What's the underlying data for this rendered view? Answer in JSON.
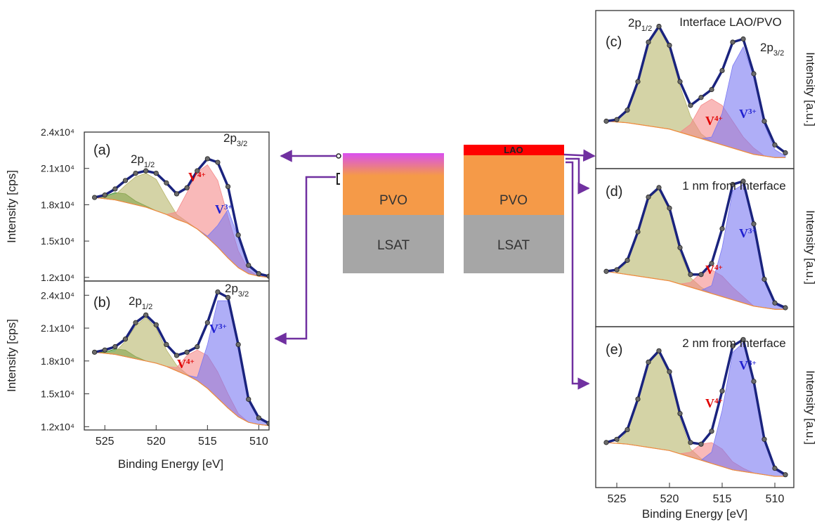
{
  "chart_data": [
    {
      "type": "line",
      "ylabel": "Intensity [cps]",
      "x": [
        526,
        525,
        524,
        523,
        522,
        521,
        520,
        519,
        518,
        517,
        516,
        515,
        514,
        513,
        512,
        511,
        510,
        509
      ],
      "xlim": [
        527,
        509
      ],
      "ylim": [
        11700,
        24000
      ],
      "yticks": [
        {
          "value": 12000,
          "label": "1.2x10⁴"
        },
        {
          "value": 15000,
          "label": "1.5x10⁴"
        },
        {
          "value": 18000,
          "label": "1.8x10⁴"
        },
        {
          "value": 21000,
          "label": "2.1x10⁴"
        },
        {
          "value": 24000,
          "label": "2.4x10⁴"
        }
      ],
      "series": [
        {
          "color": "#f08c3c",
          "values": [
            18600,
            18500,
            18400,
            18200,
            18000,
            17800,
            17500,
            17200,
            16800,
            16500,
            16000,
            15300,
            14500,
            13600,
            12800,
            12300,
            12100,
            12000
          ]
        },
        {
          "color": "#3f8a22",
          "values": [
            18600,
            18700,
            19000,
            18900,
            18300,
            17900,
            17500,
            17200,
            16800,
            16500,
            16000,
            15300,
            14500,
            13600,
            12800,
            12300,
            12100,
            12000
          ]
        },
        {
          "color": "#b8b66a",
          "values": [
            18600,
            18600,
            18800,
            19600,
            20300,
            20600,
            20100,
            18600,
            17200,
            16600,
            16000,
            15300,
            14500,
            13600,
            12800,
            12300,
            12100,
            12000
          ]
        },
        {
          "color": "#f58a8a",
          "values": [
            18600,
            18500,
            18400,
            18200,
            18000,
            17800,
            17500,
            17200,
            17400,
            19000,
            20700,
            21300,
            20000,
            17000,
            14200,
            12600,
            12100,
            12000
          ]
        },
        {
          "color": "#7a78f2",
          "values": [
            18600,
            18500,
            18400,
            18200,
            18000,
            17800,
            17500,
            17200,
            16800,
            16500,
            16000,
            15400,
            16300,
            17600,
            15300,
            13000,
            12200,
            12000
          ]
        },
        {
          "color": "#1a237e",
          "values": [
            18600,
            18800,
            19300,
            20000,
            20600,
            20800,
            20600,
            19800,
            18900,
            19400,
            20800,
            21800,
            21500,
            19500,
            15500,
            13000,
            12300,
            12100
          ]
        }
      ],
      "annotations": [
        {
          "text": "(a)"
        },
        {
          "text": "2p",
          "sub": "1/2"
        },
        {
          "text": "2p",
          "sub": "3/2"
        },
        {
          "text": "V",
          "sup": "4+",
          "color": "#e00000"
        },
        {
          "text": "V",
          "sup": "3+",
          "color": "#2020d0"
        }
      ]
    },
    {
      "type": "line",
      "ylabel": "Intensity [cps]",
      "xlabel": "Binding Energy [eV]",
      "x": [
        526,
        525,
        524,
        523,
        522,
        521,
        520,
        519,
        518,
        517,
        516,
        515,
        514,
        513,
        512,
        511,
        510,
        509
      ],
      "xlim": [
        527,
        509
      ],
      "ylim": [
        11700,
        25300
      ],
      "xticks": [
        525,
        520,
        515,
        510
      ],
      "yticks": [
        {
          "value": 12000,
          "label": "1.2x10⁴"
        },
        {
          "value": 15000,
          "label": "1.5x10⁴"
        },
        {
          "value": 18000,
          "label": "1.8x10⁴"
        },
        {
          "value": 21000,
          "label": "2.1x10⁴"
        },
        {
          "value": 24000,
          "label": "2.4x10⁴"
        }
      ],
      "series": [
        {
          "color": "#f08c3c",
          "values": [
            18800,
            18700,
            18600,
            18400,
            18200,
            18000,
            17800,
            17500,
            17100,
            16700,
            16200,
            15500,
            14600,
            13700,
            12900,
            12400,
            12200,
            12100
          ]
        },
        {
          "color": "#3f8a22",
          "values": [
            18800,
            18800,
            19100,
            19000,
            18400,
            18000,
            17800,
            17500,
            17100,
            16700,
            16200,
            15500,
            14600,
            13700,
            12900,
            12400,
            12200,
            12100
          ]
        },
        {
          "color": "#b8b66a",
          "values": [
            18800,
            18700,
            18800,
            19800,
            21200,
            22000,
            21000,
            19000,
            17600,
            16800,
            16200,
            15500,
            14600,
            13700,
            12900,
            12400,
            12200,
            12100
          ]
        },
        {
          "color": "#f58a8a",
          "values": [
            18800,
            18700,
            18600,
            18400,
            18200,
            18000,
            17800,
            17500,
            17400,
            18500,
            19000,
            18500,
            17000,
            15000,
            13200,
            12400,
            12200,
            12100
          ]
        },
        {
          "color": "#7a78f2",
          "values": [
            18800,
            18700,
            18600,
            18400,
            18200,
            18000,
            17800,
            17500,
            17100,
            16700,
            16500,
            19500,
            23500,
            23500,
            19300,
            14500,
            12800,
            12200
          ]
        },
        {
          "color": "#1a237e",
          "values": [
            18800,
            19000,
            19300,
            20000,
            21500,
            22200,
            21300,
            19500,
            18500,
            18800,
            19300,
            21500,
            24300,
            23800,
            19500,
            14500,
            12800,
            12300
          ]
        }
      ],
      "annotations": [
        {
          "text": "(b)"
        },
        {
          "text": "2p",
          "sub": "1/2"
        },
        {
          "text": "2p",
          "sub": "3/2"
        },
        {
          "text": "V",
          "sup": "4+",
          "color": "#e00000"
        },
        {
          "text": "V",
          "sup": "3+",
          "color": "#2020d0"
        }
      ]
    },
    {
      "type": "line",
      "ylabel": "Intensity [a.u.]",
      "x": [
        526,
        525,
        524,
        523,
        522,
        521,
        520,
        519,
        518,
        517,
        516,
        515,
        514,
        513,
        512,
        511,
        510,
        509
      ],
      "xlim": [
        527,
        508.2
      ],
      "ylim": [
        0,
        100
      ],
      "series": [
        {
          "color": "#f08c3c",
          "values": [
            30,
            29.5,
            29,
            28,
            27,
            26,
            25,
            23,
            21,
            19,
            17,
            15,
            13,
            11,
            9,
            8,
            7,
            7
          ]
        },
        {
          "color": "#b8b66a",
          "values": [
            30,
            31,
            36,
            54,
            79,
            89,
            76,
            52,
            33,
            22,
            17,
            15,
            13,
            11,
            9,
            8,
            7,
            7
          ]
        },
        {
          "color": "#f58a8a",
          "values": [
            30,
            29.5,
            29,
            28,
            27,
            26,
            25,
            23,
            28,
            40,
            44,
            40,
            30,
            20,
            13,
            8,
            7,
            7
          ]
        },
        {
          "color": "#7a78f2",
          "values": [
            30,
            29.5,
            29,
            28,
            27,
            26,
            25,
            23,
            21,
            19,
            20,
            35,
            65,
            77,
            58,
            28,
            12,
            8
          ]
        },
        {
          "color": "#1a237e",
          "values": [
            30,
            31,
            37,
            55,
            80,
            90,
            78,
            55,
            40,
            45,
            50,
            62,
            80,
            82,
            60,
            30,
            15,
            10
          ]
        }
      ],
      "annotations": [
        {
          "text": "(c)"
        },
        {
          "text": "2p",
          "sub": "1/2"
        },
        {
          "text": "Interface LAO/PVO"
        },
        {
          "text": "2p",
          "sub": "3/2"
        },
        {
          "text": "V",
          "sup": "4+",
          "color": "#e00000"
        },
        {
          "text": "V",
          "sup": "3+",
          "color": "#2020d0"
        }
      ]
    },
    {
      "type": "line",
      "ylabel": "Intensity [a.u.]",
      "x": [
        526,
        525,
        524,
        523,
        522,
        521,
        520,
        519,
        518,
        517,
        516,
        515,
        514,
        513,
        512,
        511,
        510,
        509
      ],
      "xlim": [
        527,
        508.2
      ],
      "ylim": [
        0,
        100
      ],
      "series": [
        {
          "color": "#f08c3c",
          "values": [
            35,
            34,
            33,
            32,
            31,
            30,
            29,
            27,
            25,
            23,
            21,
            19,
            17,
            15,
            13,
            12,
            11,
            11
          ]
        },
        {
          "color": "#b8b66a",
          "values": [
            35,
            34,
            41,
            59,
            81,
            87,
            73,
            47,
            31,
            25,
            21,
            19,
            17,
            15,
            13,
            12,
            11,
            11
          ]
        },
        {
          "color": "#f58a8a",
          "values": [
            35,
            34,
            33,
            32,
            31,
            30,
            29,
            27,
            28,
            34,
            36,
            32,
            25,
            19,
            13,
            12,
            11,
            11
          ]
        },
        {
          "color": "#7a78f2",
          "values": [
            35,
            34,
            33,
            32,
            31,
            30,
            29,
            27,
            25,
            23,
            26,
            50,
            86,
            90,
            63,
            29,
            14,
            11
          ]
        },
        {
          "color": "#1a237e",
          "values": [
            35,
            36,
            42,
            60,
            82,
            88,
            75,
            50,
            33,
            33,
            40,
            62,
            90,
            92,
            65,
            30,
            15,
            12
          ]
        }
      ],
      "annotations": [
        {
          "text": "(d)"
        },
        {
          "text": "1 nm from Interface"
        },
        {
          "text": "V",
          "sup": "4+",
          "color": "#e00000"
        },
        {
          "text": "V",
          "sup": "3+",
          "color": "#2020d0"
        }
      ]
    },
    {
      "type": "line",
      "ylabel": "Intensity [a.u.]",
      "xlabel": "Binding Energy [eV]",
      "x": [
        526,
        525,
        524,
        523,
        522,
        521,
        520,
        519,
        518,
        517,
        516,
        515,
        514,
        513,
        512,
        511,
        510,
        509
      ],
      "xlim": [
        527,
        508.2
      ],
      "ylim": [
        0,
        100
      ],
      "xticks": [
        525,
        520,
        515,
        510
      ],
      "series": [
        {
          "color": "#f08c3c",
          "values": [
            28,
            27.5,
            27,
            26,
            25,
            24,
            23,
            21,
            19,
            17,
            15,
            13,
            11,
            10,
            9,
            8,
            7,
            7
          ]
        },
        {
          "color": "#b8b66a",
          "values": [
            28,
            27.5,
            35,
            54,
            77,
            84,
            70,
            43,
            24,
            18,
            15,
            13,
            11,
            10,
            9,
            8,
            7,
            7
          ]
        },
        {
          "color": "#f58a8a",
          "values": [
            28,
            27.5,
            27,
            26,
            25,
            24,
            23,
            21,
            22,
            27,
            28,
            24,
            16,
            12,
            9,
            8,
            7,
            7
          ]
        },
        {
          "color": "#7a78f2",
          "values": [
            28,
            27.5,
            27,
            26,
            25,
            24,
            23,
            21,
            19,
            17,
            22,
            48,
            84,
            90,
            65,
            29,
            11,
            7
          ]
        },
        {
          "color": "#1a237e",
          "values": [
            28,
            30,
            36,
            55,
            78,
            85,
            72,
            46,
            28,
            27,
            35,
            60,
            88,
            92,
            66,
            30,
            12,
            8
          ]
        }
      ],
      "annotations": [
        {
          "text": "(e)"
        },
        {
          "text": "2 nm from Interface"
        },
        {
          "text": "V",
          "sup": "4+",
          "color": "#e00000"
        },
        {
          "text": "V",
          "sup": "3+",
          "color": "#2020d0"
        }
      ]
    }
  ],
  "diagram": {
    "left_stack": [
      "PVO",
      "LSAT"
    ],
    "right_stack": [
      "LAO",
      "PVO",
      "LSAT"
    ]
  }
}
